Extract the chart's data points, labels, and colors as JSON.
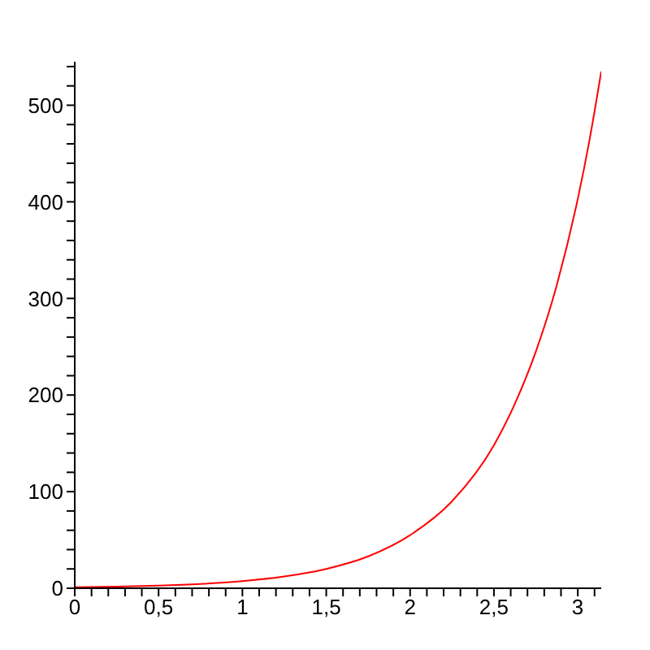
{
  "chart_data": {
    "type": "line",
    "x": [
      0,
      0.25,
      0.5,
      0.75,
      1,
      1.25,
      1.5,
      1.75,
      2,
      2.25,
      2.5,
      2.625,
      2.75,
      2.875,
      3,
      3.07,
      3.14
    ],
    "series": [
      {
        "color": "#ff0000",
        "values": [
          1,
          1.6,
          2.7,
          4.5,
          7.4,
          12.2,
          20,
          33,
          55,
          90,
          148,
          191,
          245,
          314,
          403,
          464,
          535
        ]
      }
    ],
    "xlim": [
      0,
      3.14
    ],
    "xticks": [
      0,
      {
        "value": 0.1,
        "label": null
      },
      {
        "value": 0.2,
        "label": null
      },
      {
        "value": 0.3,
        "label": null
      },
      {
        "value": 0.4,
        "label": null
      },
      {
        "value": 0.5,
        "label": "0,5"
      },
      {
        "value": 0.6,
        "label": null
      },
      {
        "value": 0.7,
        "label": null
      },
      {
        "value": 0.8,
        "label": null
      },
      {
        "value": 0.9,
        "label": null
      },
      1,
      {
        "value": 1.1,
        "label": null
      },
      {
        "value": 1.2,
        "label": null
      },
      {
        "value": 1.3,
        "label": null
      },
      {
        "value": 1.4,
        "label": null
      },
      {
        "value": 1.5,
        "label": "1,5"
      },
      {
        "value": 1.6,
        "label": null
      },
      {
        "value": 1.7,
        "label": null
      },
      {
        "value": 1.8,
        "label": null
      },
      {
        "value": 1.9,
        "label": null
      },
      2,
      {
        "value": 2.1,
        "label": null
      },
      {
        "value": 2.2,
        "label": null
      },
      {
        "value": 2.3,
        "label": null
      },
      {
        "value": 2.4,
        "label": null
      },
      {
        "value": 2.5,
        "label": "2,5"
      },
      {
        "value": 2.6,
        "label": null
      },
      {
        "value": 2.7,
        "label": null
      },
      {
        "value": 2.8,
        "label": null
      },
      {
        "value": 2.9,
        "label": null
      },
      3,
      {
        "value": 3.1,
        "label": null
      }
    ],
    "ylim": [
      0,
      545
    ],
    "yticks": [
      0,
      {
        "value": 20,
        "label": null
      },
      {
        "value": 40,
        "label": null
      },
      {
        "value": 60,
        "label": null
      },
      {
        "value": 80,
        "label": null
      },
      100,
      {
        "value": 120,
        "label": null
      },
      {
        "value": 140,
        "label": null
      },
      {
        "value": 160,
        "label": null
      },
      {
        "value": 180,
        "label": null
      },
      200,
      {
        "value": 220,
        "label": null
      },
      {
        "value": 240,
        "label": null
      },
      {
        "value": 260,
        "label": null
      },
      {
        "value": 280,
        "label": null
      },
      300,
      {
        "value": 320,
        "label": null
      },
      {
        "value": 340,
        "label": null
      },
      {
        "value": 360,
        "label": null
      },
      {
        "value": 380,
        "label": null
      },
      400,
      {
        "value": 420,
        "label": null
      },
      {
        "value": 440,
        "label": null
      },
      {
        "value": 460,
        "label": null
      },
      {
        "value": 480,
        "label": null
      },
      500,
      {
        "value": 520,
        "label": null
      },
      {
        "value": 540,
        "label": null
      }
    ],
    "grid": false,
    "legend": false,
    "marker": "none",
    "line_style": "solid"
  }
}
